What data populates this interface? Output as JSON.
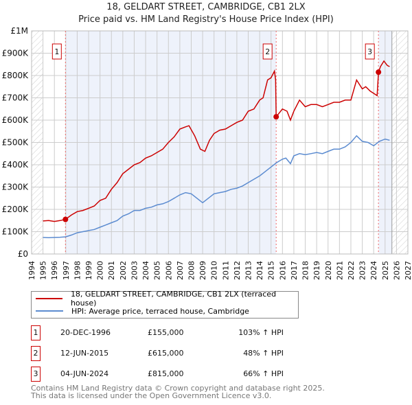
{
  "chart_data": {
    "type": "line",
    "title": "18, GELDART STREET, CAMBRIDGE, CB1 2LX",
    "subtitle": "Price paid vs. HM Land Registry's House Price Index (HPI)",
    "xlim": [
      1994,
      2027
    ],
    "ylim": [
      0,
      1000000
    ],
    "yticks": [
      {
        "v": 0,
        "l": "£0"
      },
      {
        "v": 100000,
        "l": "£100K"
      },
      {
        "v": 200000,
        "l": "£200K"
      },
      {
        "v": 300000,
        "l": "£300K"
      },
      {
        "v": 400000,
        "l": "£400K"
      },
      {
        "v": 500000,
        "l": "£500K"
      },
      {
        "v": 600000,
        "l": "£600K"
      },
      {
        "v": 700000,
        "l": "£700K"
      },
      {
        "v": 800000,
        "l": "£800K"
      },
      {
        "v": 900000,
        "l": "£900K"
      },
      {
        "v": 1000000,
        "l": "£1M"
      }
    ],
    "xticks": [
      "1994",
      "1995",
      "1996",
      "1997",
      "1998",
      "1999",
      "2000",
      "2001",
      "2002",
      "2003",
      "2004",
      "2005",
      "2006",
      "2007",
      "2008",
      "2009",
      "2010",
      "2011",
      "2012",
      "2013",
      "2014",
      "2015",
      "2016",
      "2017",
      "2018",
      "2019",
      "2020",
      "2021",
      "2022",
      "2023",
      "2024",
      "2025",
      "2026",
      "2027"
    ],
    "data_end": 2025.6,
    "series": [
      {
        "name": "18, GELDART STREET, CAMBRIDGE, CB1 2LX (terraced house)",
        "color": "#cc0000",
        "x": [
          1995,
          1995.5,
          1996,
          1996.5,
          1996.97,
          1997.5,
          1998,
          1998.5,
          1999,
          1999.5,
          2000,
          2000.5,
          2001,
          2001.5,
          2002,
          2002.5,
          2003,
          2003.5,
          2004,
          2004.5,
          2005,
          2005.5,
          2006,
          2006.5,
          2007,
          2007.5,
          2007.8,
          2008.3,
          2008.8,
          2009.2,
          2009.6,
          2010,
          2010.5,
          2011,
          2011.5,
          2012,
          2012.5,
          2013,
          2013.5,
          2014,
          2014.3,
          2014.7,
          2015,
          2015.3,
          2015.4,
          2015.45,
          2016,
          2016.4,
          2016.7,
          2017,
          2017.5,
          2018,
          2018.5,
          2019,
          2019.5,
          2020,
          2020.5,
          2021,
          2021.5,
          2022,
          2022.5,
          2023,
          2023.3,
          2023.7,
          2024,
          2024.3,
          2024.42,
          2024.6,
          2024.9,
          2025.2,
          2025.4
        ],
        "y": [
          148000,
          150000,
          146000,
          150000,
          155000,
          175000,
          190000,
          195000,
          205000,
          215000,
          240000,
          250000,
          290000,
          320000,
          360000,
          380000,
          400000,
          410000,
          430000,
          440000,
          455000,
          470000,
          500000,
          525000,
          560000,
          570000,
          575000,
          530000,
          470000,
          460000,
          510000,
          540000,
          555000,
          560000,
          575000,
          590000,
          600000,
          640000,
          650000,
          690000,
          700000,
          780000,
          790000,
          820000,
          780000,
          615000,
          650000,
          640000,
          600000,
          640000,
          690000,
          660000,
          670000,
          670000,
          660000,
          670000,
          680000,
          680000,
          690000,
          690000,
          780000,
          740000,
          750000,
          730000,
          720000,
          710000,
          815000,
          840000,
          865000,
          845000,
          840000
        ]
      },
      {
        "name": "HPI: Average price, terraced house, Cambridge",
        "color": "#5b8bd0",
        "x": [
          1995,
          1995.5,
          1996,
          1996.5,
          1997,
          1997.5,
          1998,
          1998.5,
          1999,
          1999.5,
          2000,
          2000.5,
          2001,
          2001.5,
          2002,
          2002.5,
          2003,
          2003.5,
          2004,
          2004.5,
          2005,
          2005.5,
          2006,
          2006.5,
          2007,
          2007.5,
          2008,
          2008.5,
          2009,
          2009.5,
          2010,
          2010.5,
          2011,
          2011.5,
          2012,
          2012.5,
          2013,
          2013.5,
          2014,
          2014.5,
          2015,
          2015.5,
          2016,
          2016.3,
          2016.7,
          2017,
          2017.5,
          2018,
          2018.5,
          2019,
          2019.5,
          2020,
          2020.5,
          2021,
          2021.5,
          2022,
          2022.5,
          2023,
          2023.5,
          2024,
          2024.5,
          2025,
          2025.4
        ],
        "y": [
          74000,
          73000,
          74000,
          75000,
          77000,
          85000,
          95000,
          100000,
          105000,
          110000,
          120000,
          130000,
          140000,
          150000,
          170000,
          180000,
          195000,
          195000,
          205000,
          210000,
          220000,
          225000,
          235000,
          250000,
          265000,
          275000,
          270000,
          250000,
          230000,
          250000,
          270000,
          275000,
          280000,
          290000,
          295000,
          305000,
          320000,
          335000,
          350000,
          370000,
          390000,
          410000,
          425000,
          430000,
          405000,
          440000,
          450000,
          445000,
          450000,
          455000,
          450000,
          460000,
          470000,
          470000,
          480000,
          500000,
          530000,
          505000,
          500000,
          485000,
          505000,
          515000,
          510000
        ]
      }
    ],
    "sales": [
      {
        "n": "1",
        "x": 1996.97,
        "y": 155000
      },
      {
        "n": "2",
        "x": 2015.45,
        "y": 615000
      },
      {
        "n": "3",
        "x": 2024.42,
        "y": 815000
      }
    ]
  },
  "legend": [
    "18, GELDART STREET, CAMBRIDGE, CB1 2LX (terraced house)",
    "HPI: Average price, terraced house, Cambridge"
  ],
  "sales_table": [
    {
      "n": "1",
      "date": "20-DEC-1996",
      "price": "£155,000",
      "hpi": "103% ↑ HPI"
    },
    {
      "n": "2",
      "date": "12-JUN-2015",
      "price": "£615,000",
      "hpi": "48% ↑ HPI"
    },
    {
      "n": "3",
      "date": "04-JUN-2024",
      "price": "£815,000",
      "hpi": "66% ↑ HPI"
    }
  ],
  "footer": [
    "Contains HM Land Registry data © Crown copyright and database right 2025.",
    "This data is licensed under the Open Government Licence v3.0."
  ]
}
